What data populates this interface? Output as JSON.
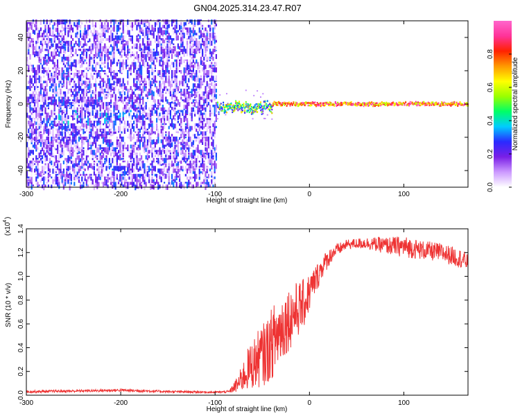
{
  "figure": {
    "title": "GN04.2025.314.23.47.R07"
  },
  "chart_data": [
    {
      "type": "heatmap",
      "xlabel": "Height of straight line (km)",
      "ylabel": "Frequency (Hz)",
      "xlim": [
        -300,
        168
      ],
      "ylim": [
        -50,
        50
      ],
      "xticks": [
        -300,
        -200,
        -100,
        0,
        100
      ],
      "yticks": [
        -40,
        -20,
        0,
        20,
        40
      ],
      "colorbar": {
        "label": "Normalized spectral amplitude",
        "range": [
          0,
          1
        ],
        "ticks": [
          0.0,
          0.2,
          0.4,
          0.6,
          0.8
        ],
        "colormap": [
          "#ffffff",
          "#cc99ff",
          "#7a1fe6",
          "#2a2aff",
          "#00ccff",
          "#00ff66",
          "#99ff00",
          "#ffff00",
          "#ff9900",
          "#ff2200",
          "#ff3399",
          "#ff66cc"
        ]
      },
      "regions": [
        {
          "x_from": -300,
          "x_to": -98,
          "description": "broadband noise across all frequencies, amplitude ~0.1-0.3",
          "freq_center": 0,
          "amplitude": 0.2
        },
        {
          "x_from": -270,
          "x_to": -190,
          "description": "weak band near -8 Hz",
          "freq_center": -8,
          "amplitude": 0.35
        },
        {
          "x_from": -102,
          "x_to": -40,
          "description": "line emerging, spread",
          "freq_center": -2,
          "amplitude": 0.6
        },
        {
          "x_from": -40,
          "x_to": 168,
          "description": "narrow strong line",
          "freq_center": 0,
          "amplitude": 1.0
        }
      ],
      "grid": false
    },
    {
      "type": "line",
      "xlabel": "Height of straight line (km)",
      "ylabel": "SNR (10 * v/v)",
      "y_scale_label": "(x10",
      "y_scale_exponent": "4",
      "xlim": [
        -300,
        168
      ],
      "ylim": [
        0,
        14000
      ],
      "xticks": [
        -300,
        -200,
        -100,
        0,
        100
      ],
      "yticks": [
        0,
        2000,
        4000,
        6000,
        8000,
        10000,
        12000,
        14000
      ],
      "ytick_labels": [
        "0.0",
        "0.2",
        "0.4",
        "0.6",
        "0.8",
        "1.0",
        "1.2",
        "1.4"
      ],
      "series": [
        {
          "color": "#ee3333",
          "x": [
            -300,
            -250,
            -200,
            -150,
            -100,
            -85,
            -75,
            -65,
            -55,
            -45,
            -35,
            -25,
            -15,
            -5,
            5,
            15,
            25,
            40,
            60,
            80,
            100,
            120,
            140,
            160,
            168
          ],
          "values": [
            300,
            350,
            420,
            300,
            250,
            300,
            1000,
            2200,
            3000,
            3700,
            5000,
            6200,
            7000,
            7800,
            9500,
            11000,
            12000,
            12700,
            12800,
            12600,
            12500,
            12200,
            12000,
            11500,
            11200
          ],
          "noise_amplitude": [
            100,
            100,
            120,
            100,
            80,
            100,
            800,
            1800,
            2400,
            2800,
            3200,
            2800,
            2500,
            2000,
            1300,
            900,
            600,
            400,
            500,
            700,
            900,
            800,
            800,
            800,
            700
          ]
        }
      ],
      "grid": false
    }
  ]
}
